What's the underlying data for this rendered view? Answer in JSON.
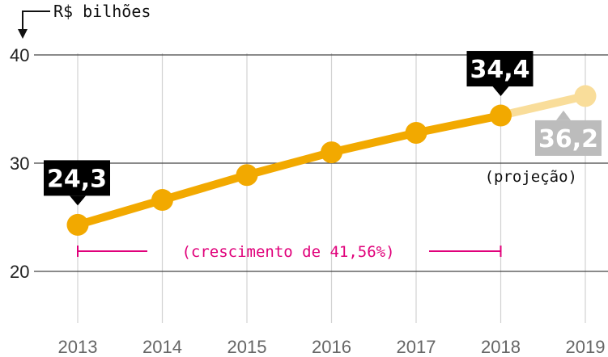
{
  "chart_data": {
    "type": "line",
    "unit_label": "R$ bilhões",
    "categories": [
      "2013",
      "2014",
      "2015",
      "2016",
      "2017",
      "2018",
      "2019"
    ],
    "series": [
      {
        "values": [
          24.3,
          26.6,
          28.9,
          31.0,
          32.8,
          34.4,
          36.2
        ],
        "projected_from_index": 5
      }
    ],
    "yticks": [
      {
        "value": 40,
        "label": "40"
      },
      {
        "value": 30,
        "label": "30"
      },
      {
        "value": 20,
        "label": "20"
      }
    ],
    "ylim": [
      17,
      44
    ],
    "grid": true,
    "callouts": [
      {
        "index": 0,
        "label": "24,3",
        "style": "actual"
      },
      {
        "index": 5,
        "label": "34,4",
        "style": "actual"
      },
      {
        "index": 6,
        "label": "36,2",
        "style": "projected"
      }
    ],
    "projection_label": "(projeção)",
    "growth_annotation": {
      "from_index": 0,
      "to_index": 5,
      "label": "(crescimento de 41,56%)"
    },
    "colors": {
      "line": "#f2a900",
      "projection": "#f9dd9a",
      "callout_actual": "#000000",
      "callout_projected": "#bcbcbc",
      "annotation": "#e0007a",
      "grid_vertical": "#d2d2d2",
      "grid_horizontal": "#444444"
    }
  }
}
